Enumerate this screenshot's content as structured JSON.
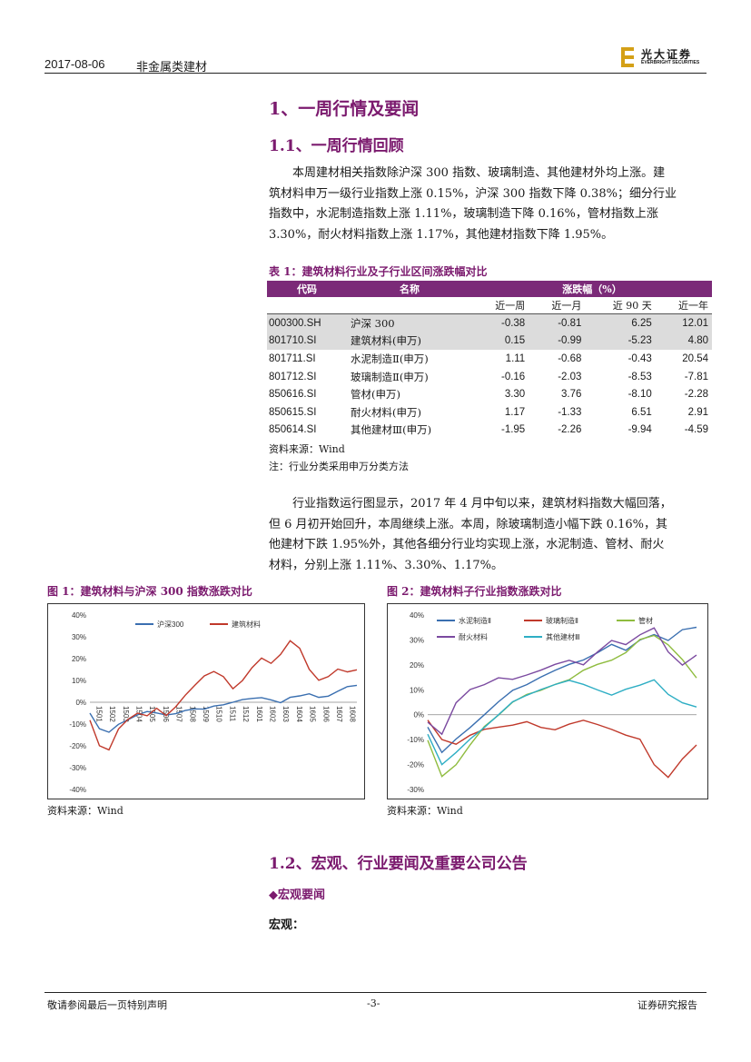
{
  "header": {
    "date": "2017-08-06",
    "sector": "非金属类建材",
    "logo_cn": "光大证券",
    "logo_en": "EVERBRIGHT SECURITIES"
  },
  "section1": {
    "title": "1、一周行情及要闻",
    "sub": "1.1、一周行情回顾"
  },
  "para1": [
    "本周建材相关指数除沪深 300 指数、玻璃制造、其他建材外均上涨。建",
    "筑材料申万一级行业指数上涨 0.15%，沪深 300 指数下降 0.38%；细分行业",
    "指数中，水泥制造指数上涨 1.11%，玻璃制造下降 0.16%，管材指数上涨",
    "3.30%，耐火材料指数上涨 1.17%，其他建材指数下降 1.95%。"
  ],
  "table1": {
    "title": "表 1：建筑材料行业及子行业区间涨跌幅对比",
    "headers": [
      "代码",
      "名称",
      "涨跌幅（%）"
    ],
    "subheaders": [
      "近一周",
      "近一月",
      "近 90 天",
      "近一年"
    ],
    "rows": [
      [
        "000300.SH",
        "沪深 300",
        "-0.38",
        "-0.81",
        "6.25",
        "12.01"
      ],
      [
        "801710.SI",
        "建筑材料(申万)",
        "0.15",
        "-0.99",
        "-5.23",
        "4.80"
      ],
      [
        "801711.SI",
        "水泥制造Ⅱ(申万)",
        "1.11",
        "-0.68",
        "-0.43",
        "20.54"
      ],
      [
        "801712.SI",
        "玻璃制造Ⅱ(申万)",
        "-0.16",
        "-2.03",
        "-8.53",
        "-7.81"
      ],
      [
        "850616.SI",
        "管材(申万)",
        "3.30",
        "3.76",
        "-8.10",
        "-2.28"
      ],
      [
        "850615.SI",
        "耐火材料(申万)",
        "1.17",
        "-1.33",
        "6.51",
        "2.91"
      ],
      [
        "850614.SI",
        "其他建材Ⅲ(申万)",
        "-1.95",
        "-2.26",
        "-9.94",
        "-4.59"
      ]
    ],
    "source": "资料来源：Wind",
    "note": "注：行业分类采用申万分类方法"
  },
  "para2": [
    "行业指数运行图显示，2017 年 4 月中旬以来，建筑材料指数大幅回落，",
    "但 6 月初开始回升，本周继续上涨。本周，除玻璃制造小幅下跌 0.16%，其",
    "他建材下跌 1.95%外，其他各细分行业均实现上涨，水泥制造、管材、耐火",
    "材料，分别上涨 1.11%、3.30%、1.17%。"
  ],
  "fig1": {
    "title": "图 1：建筑材料与沪深 300 指数涨跌对比",
    "source": "资料来源：Wind"
  },
  "fig2": {
    "title": "图 2：建筑材料子行业指数涨跌对比",
    "source": "资料来源：Wind"
  },
  "chart_data": [
    {
      "type": "line",
      "title": "图 1：建筑材料与沪深 300 指数涨跌对比",
      "ylim": [
        -40,
        40
      ],
      "yticks": [
        "40%",
        "30%",
        "20%",
        "10%",
        "0%",
        "-10%",
        "-20%",
        "-30%",
        "-40%"
      ],
      "xticks": [
        "1501",
        "1502",
        "1503",
        "1504",
        "1505",
        "1506",
        "1507",
        "1508",
        "1509",
        "1510",
        "1511",
        "1512",
        "1601",
        "1602",
        "1603",
        "1604",
        "1605",
        "1606",
        "1607",
        "1608"
      ],
      "legend_position": "top",
      "series": [
        {
          "name": "沪深300",
          "color": "#3a6fb0",
          "values": [
            -5,
            -12,
            -14,
            -10,
            -8,
            -6,
            -4,
            -5,
            -6,
            -5,
            -4,
            -3,
            -3,
            -2,
            -1,
            0,
            1,
            2,
            2,
            1,
            0,
            2,
            3,
            4,
            2,
            3,
            5,
            7,
            8
          ]
        },
        {
          "name": "建筑材料",
          "color": "#c0392b",
          "values": [
            -8,
            -20,
            -22,
            -12,
            -8,
            -5,
            -6,
            -3,
            -6,
            -2,
            3,
            8,
            12,
            14,
            12,
            6,
            10,
            16,
            20,
            18,
            22,
            28,
            25,
            15,
            10,
            12,
            15,
            14,
            15
          ]
        }
      ]
    },
    {
      "type": "line",
      "title": "图 2：建筑材料子行业指数涨跌对比",
      "ylim": [
        -30,
        40
      ],
      "yticks": [
        "40%",
        "30%",
        "20%",
        "10%",
        "0%",
        "-10%",
        "-20%",
        "-30%"
      ],
      "legend_position": "top",
      "series": [
        {
          "name": "水泥制造Ⅱ",
          "color": "#3a6fb0",
          "values": [
            -5,
            -15,
            -10,
            -5,
            0,
            5,
            10,
            12,
            15,
            18,
            20,
            22,
            25,
            28,
            26,
            30,
            32,
            30,
            34,
            35
          ]
        },
        {
          "name": "玻璃制造Ⅱ",
          "color": "#c0392b",
          "values": [
            -2,
            -10,
            -12,
            -8,
            -6,
            -5,
            -4,
            -3,
            -5,
            -6,
            -4,
            -2,
            -4,
            -6,
            -8,
            -10,
            -20,
            -25,
            -18,
            -12
          ]
        },
        {
          "name": "管材",
          "color": "#8fbc3f",
          "values": [
            -10,
            -25,
            -20,
            -12,
            -5,
            0,
            5,
            8,
            10,
            12,
            14,
            18,
            20,
            22,
            25,
            30,
            32,
            28,
            22,
            15
          ]
        },
        {
          "name": "耐火材料",
          "color": "#7b4aa0",
          "values": [
            -3,
            -8,
            5,
            10,
            12,
            15,
            14,
            16,
            18,
            20,
            22,
            20,
            25,
            30,
            28,
            32,
            35,
            25,
            20,
            24
          ]
        },
        {
          "name": "其他建材Ⅲ",
          "color": "#2eaec4",
          "values": [
            -8,
            -20,
            -15,
            -10,
            -5,
            0,
            5,
            8,
            10,
            12,
            14,
            12,
            10,
            8,
            10,
            12,
            14,
            8,
            5,
            3
          ]
        }
      ]
    }
  ],
  "section12": {
    "title": "1.2、宏观、行业要闻及重要公司公告",
    "macro_head": "◆宏观要闻",
    "macro": "宏观："
  },
  "footer": {
    "left": "敬请参阅最后一页特别声明",
    "center": "-3-",
    "right": "证券研究报告"
  }
}
